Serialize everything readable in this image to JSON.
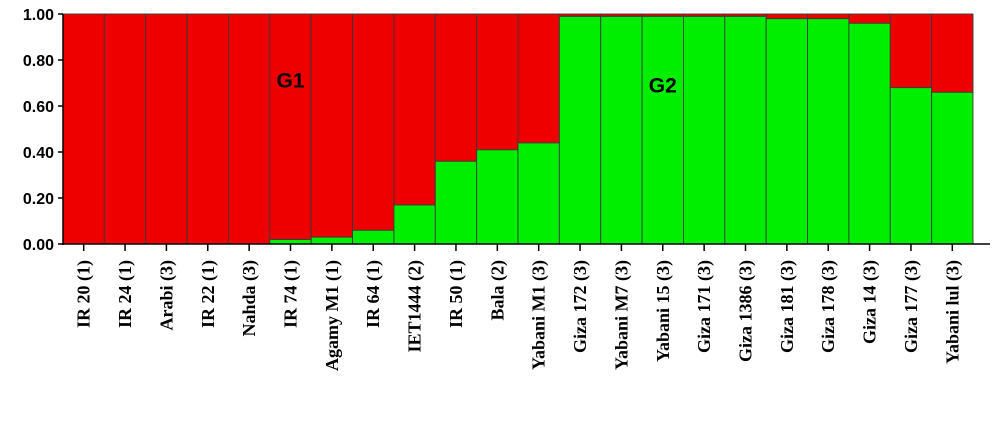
{
  "chart_data": {
    "type": "bar",
    "stacked": true,
    "categories": [
      "IR 20 (1)",
      "IR 24 (1)",
      "Arabi (3)",
      "IR 22 (1)",
      "Nahda (3)",
      "IR 74 (1)",
      "Agamy M1 (1)",
      "IR 64 (1)",
      "IET1444 (2)",
      "IR 50 (1)",
      "Bala (2)",
      "Yabani M1 (3)",
      "Giza 172 (3)",
      "Yabani M7 (3)",
      "Yabani 15 (3)",
      "Giza 171 (3)",
      "Giza 1386 (3)",
      "Giza 181 (3)",
      "Giza 178 (3)",
      "Giza 14 (3)",
      "Giza 177 (3)",
      "Yabani lul (3)"
    ],
    "series": [
      {
        "color": "#00ee00",
        "values": [
          0.0,
          0.0,
          0.0,
          0.0,
          0.0,
          0.02,
          0.03,
          0.06,
          0.17,
          0.36,
          0.41,
          0.44,
          0.99,
          0.99,
          0.99,
          0.99,
          0.99,
          0.98,
          0.98,
          0.96,
          0.68,
          0.66
        ]
      },
      {
        "color": "#ee0000",
        "values": [
          1.0,
          1.0,
          1.0,
          1.0,
          1.0,
          0.98,
          0.97,
          0.94,
          0.83,
          0.64,
          0.59,
          0.56,
          0.01,
          0.01,
          0.01,
          0.01,
          0.01,
          0.02,
          0.02,
          0.04,
          0.32,
          0.34
        ]
      }
    ],
    "yticks": [
      "0.00",
      "0.20",
      "0.40",
      "0.60",
      "0.80",
      "1.00"
    ],
    "ylim": [
      0,
      1
    ],
    "grid": false,
    "legend": "none",
    "annotations": [
      {
        "text": "G1",
        "category": "IR 74 (1)",
        "y": 0.71
      },
      {
        "text": "G2",
        "category": "Yabani 15 (3)",
        "y": 0.69
      }
    ]
  }
}
